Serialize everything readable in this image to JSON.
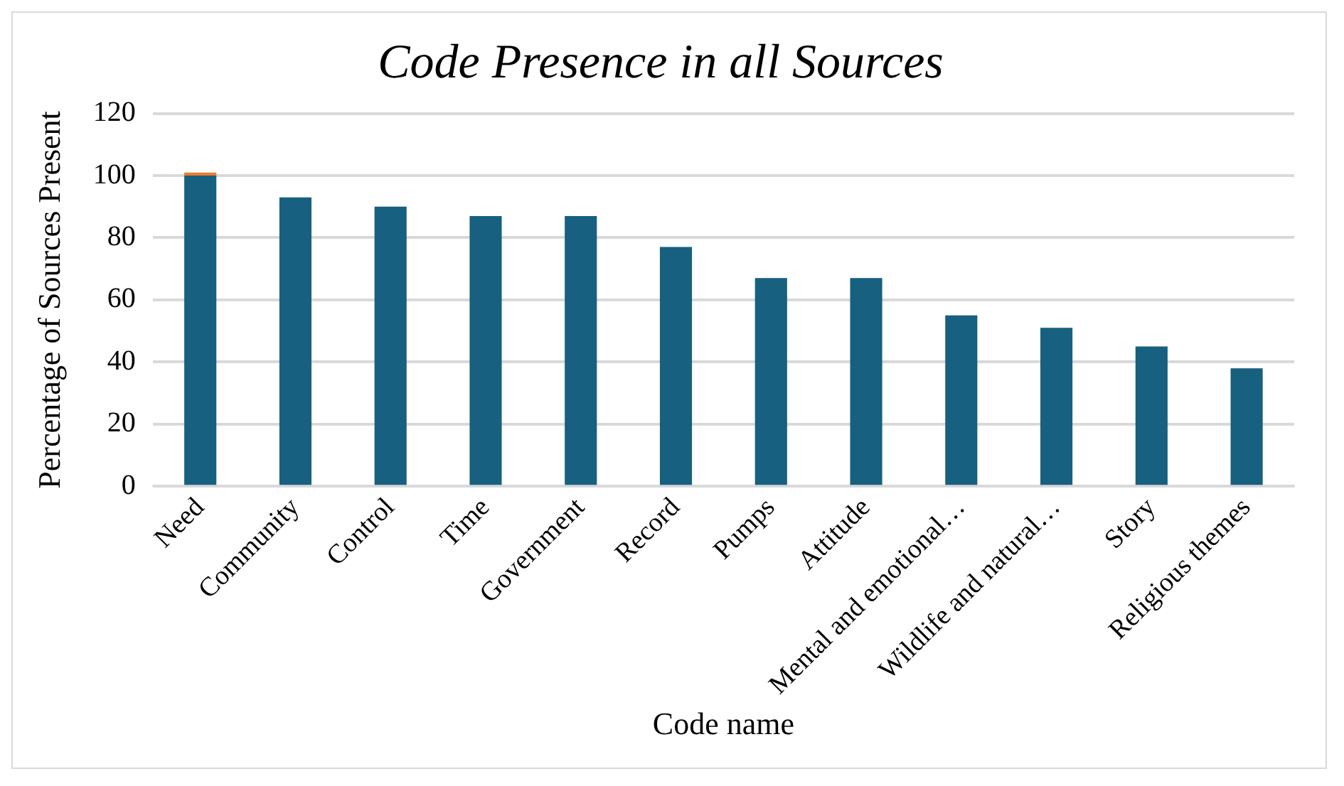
{
  "chart_data": {
    "type": "bar",
    "title": "Code Presence in all Sources",
    "xlabel": "Code name",
    "ylabel": "Percentage of Sources Present",
    "categories": [
      "Need",
      "Community",
      "Control",
      "Time",
      "Government",
      "Record",
      "Pumps",
      "Attitude",
      "Mental and emotional…",
      "Wildlife and natural…",
      "Story",
      "Religious themes"
    ],
    "series": [
      {
        "color": "#17607f",
        "values": [
          100,
          93,
          90,
          87,
          87,
          77,
          67,
          67,
          55,
          51,
          45,
          38
        ]
      },
      {
        "color": "#ed7d31",
        "values": [
          1,
          0,
          0,
          0,
          0,
          0,
          0,
          0,
          0,
          0,
          0,
          0
        ]
      }
    ],
    "stacked": true,
    "ylim": [
      0,
      120
    ],
    "yticks": [
      0,
      20,
      40,
      60,
      80,
      100,
      120
    ],
    "grid": "y",
    "legend": false
  }
}
